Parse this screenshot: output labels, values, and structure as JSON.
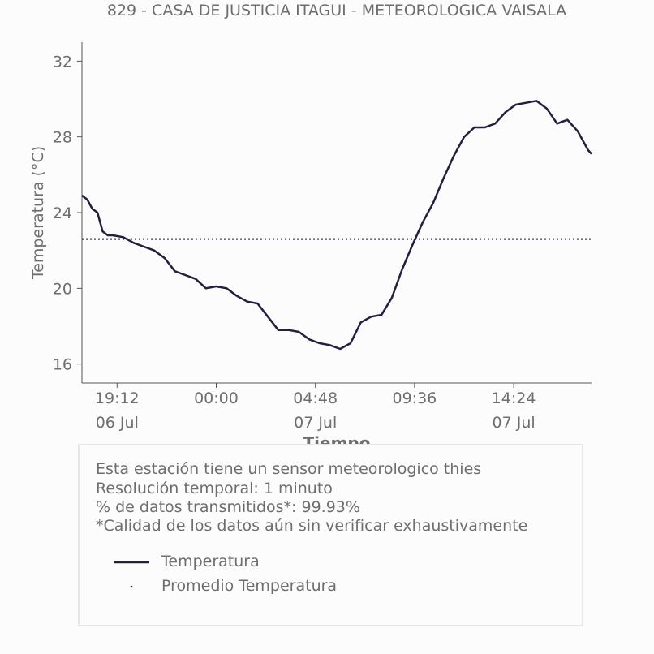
{
  "chart_data": {
    "type": "line",
    "title": "829 - CASA DE JUSTICIA ITAGUI - METEOROLOGICA VAISALA",
    "xlabel": "Tiempo",
    "ylabel": "Temperatura (°C)",
    "ylim": [
      15,
      33
    ],
    "yticks": [
      16,
      20,
      24,
      28,
      32
    ],
    "xlim": [
      "2023-07-06 17:30",
      "2023-07-07 18:10"
    ],
    "xticks": [
      {
        "at": "2023-07-06 19:12",
        "time": "19:12",
        "date": "06 Jul"
      },
      {
        "at": "2023-07-07 00:00",
        "time": "00:00",
        "date": ""
      },
      {
        "at": "2023-07-07 04:48",
        "time": "04:48",
        "date": "07 Jul"
      },
      {
        "at": "2023-07-07 09:36",
        "time": "09:36",
        "date": ""
      },
      {
        "at": "2023-07-07 14:24",
        "time": "14:24",
        "date": "07 Jul"
      }
    ],
    "grid": false,
    "series": [
      {
        "name": "Temperatura",
        "color": "#21203f",
        "style": "solid",
        "x": [
          "2023-07-06 17:30",
          "2023-07-06 17:45",
          "2023-07-06 18:00",
          "2023-07-06 18:15",
          "2023-07-06 18:30",
          "2023-07-06 18:45",
          "2023-07-06 19:00",
          "2023-07-06 19:30",
          "2023-07-06 20:00",
          "2023-07-06 20:30",
          "2023-07-06 21:00",
          "2023-07-06 21:30",
          "2023-07-06 22:00",
          "2023-07-06 22:30",
          "2023-07-06 23:00",
          "2023-07-06 23:30",
          "2023-07-07 00:00",
          "2023-07-07 00:30",
          "2023-07-07 01:00",
          "2023-07-07 01:30",
          "2023-07-07 02:00",
          "2023-07-07 02:30",
          "2023-07-07 03:00",
          "2023-07-07 03:30",
          "2023-07-07 04:00",
          "2023-07-07 04:30",
          "2023-07-07 05:00",
          "2023-07-07 05:30",
          "2023-07-07 06:00",
          "2023-07-07 06:30",
          "2023-07-07 07:00",
          "2023-07-07 07:30",
          "2023-07-07 08:00",
          "2023-07-07 08:30",
          "2023-07-07 09:00",
          "2023-07-07 09:30",
          "2023-07-07 10:00",
          "2023-07-07 10:30",
          "2023-07-07 11:00",
          "2023-07-07 11:30",
          "2023-07-07 12:00",
          "2023-07-07 12:30",
          "2023-07-07 13:00",
          "2023-07-07 13:30",
          "2023-07-07 14:00",
          "2023-07-07 14:30",
          "2023-07-07 15:00",
          "2023-07-07 15:30",
          "2023-07-07 16:00",
          "2023-07-07 16:30",
          "2023-07-07 17:00",
          "2023-07-07 17:30",
          "2023-07-07 18:00",
          "2023-07-07 18:10"
        ],
        "values": [
          24.9,
          24.7,
          24.2,
          24.0,
          23.0,
          22.8,
          22.8,
          22.7,
          22.4,
          22.2,
          22.0,
          21.6,
          20.9,
          20.7,
          20.5,
          20.0,
          20.1,
          20.0,
          19.6,
          19.3,
          19.2,
          18.5,
          17.8,
          17.8,
          17.7,
          17.3,
          17.1,
          17.0,
          16.8,
          17.1,
          18.2,
          18.5,
          18.6,
          19.5,
          21.0,
          22.3,
          23.5,
          24.5,
          25.8,
          27.0,
          28.0,
          28.5,
          28.5,
          28.7,
          29.3,
          29.7,
          29.8,
          29.9,
          29.5,
          28.7,
          28.9,
          28.3,
          27.3,
          27.1
        ]
      },
      {
        "name": "Promedio Temperatura",
        "color": "#21203f",
        "style": "dotted",
        "value": 22.6
      }
    ]
  },
  "info": {
    "line1": "Esta estación tiene un sensor meteorologico thies",
    "line2": "Resolución temporal: 1 minuto",
    "line3": "% de datos transmitidos*: 99.93%",
    "line4": "*Calidad de los datos aún sin verificar exhaustivamente"
  },
  "legend": {
    "series1": "Temperatura",
    "series2": "Promedio Temperatura"
  },
  "colors": {
    "line": "#21203f",
    "text": "#6e6e6e",
    "box_border": "#e6e6e6"
  }
}
